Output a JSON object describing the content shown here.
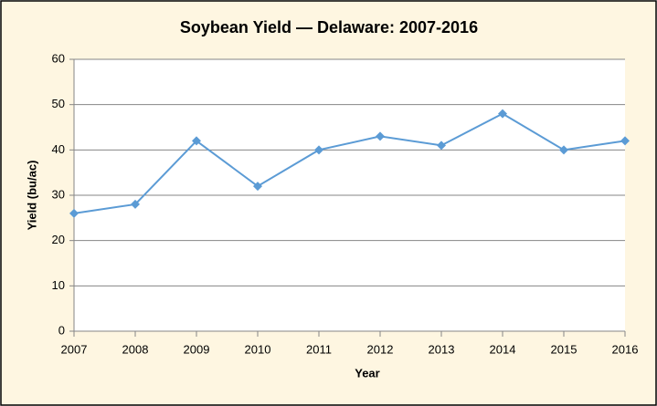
{
  "chart_data": {
    "type": "line",
    "title": "Soybean Yield — Delaware: 2007-2016",
    "x_label": "Year",
    "y_label": "Yield (bu/ac)",
    "x": [
      2007,
      2008,
      2009,
      2010,
      2011,
      2012,
      2013,
      2014,
      2015,
      2016
    ],
    "values": [
      26,
      28,
      42,
      32,
      40,
      43,
      41,
      48,
      40,
      42
    ],
    "color": "#5b9bd5",
    "xlim": [
      2007,
      2016
    ],
    "xticks": [
      2007,
      2008,
      2009,
      2010,
      2011,
      2012,
      2013,
      2014,
      2015,
      2016
    ],
    "ylim": [
      0,
      60
    ],
    "yticks": [
      0,
      10,
      20,
      30,
      40,
      50,
      60
    ],
    "grid": true
  }
}
